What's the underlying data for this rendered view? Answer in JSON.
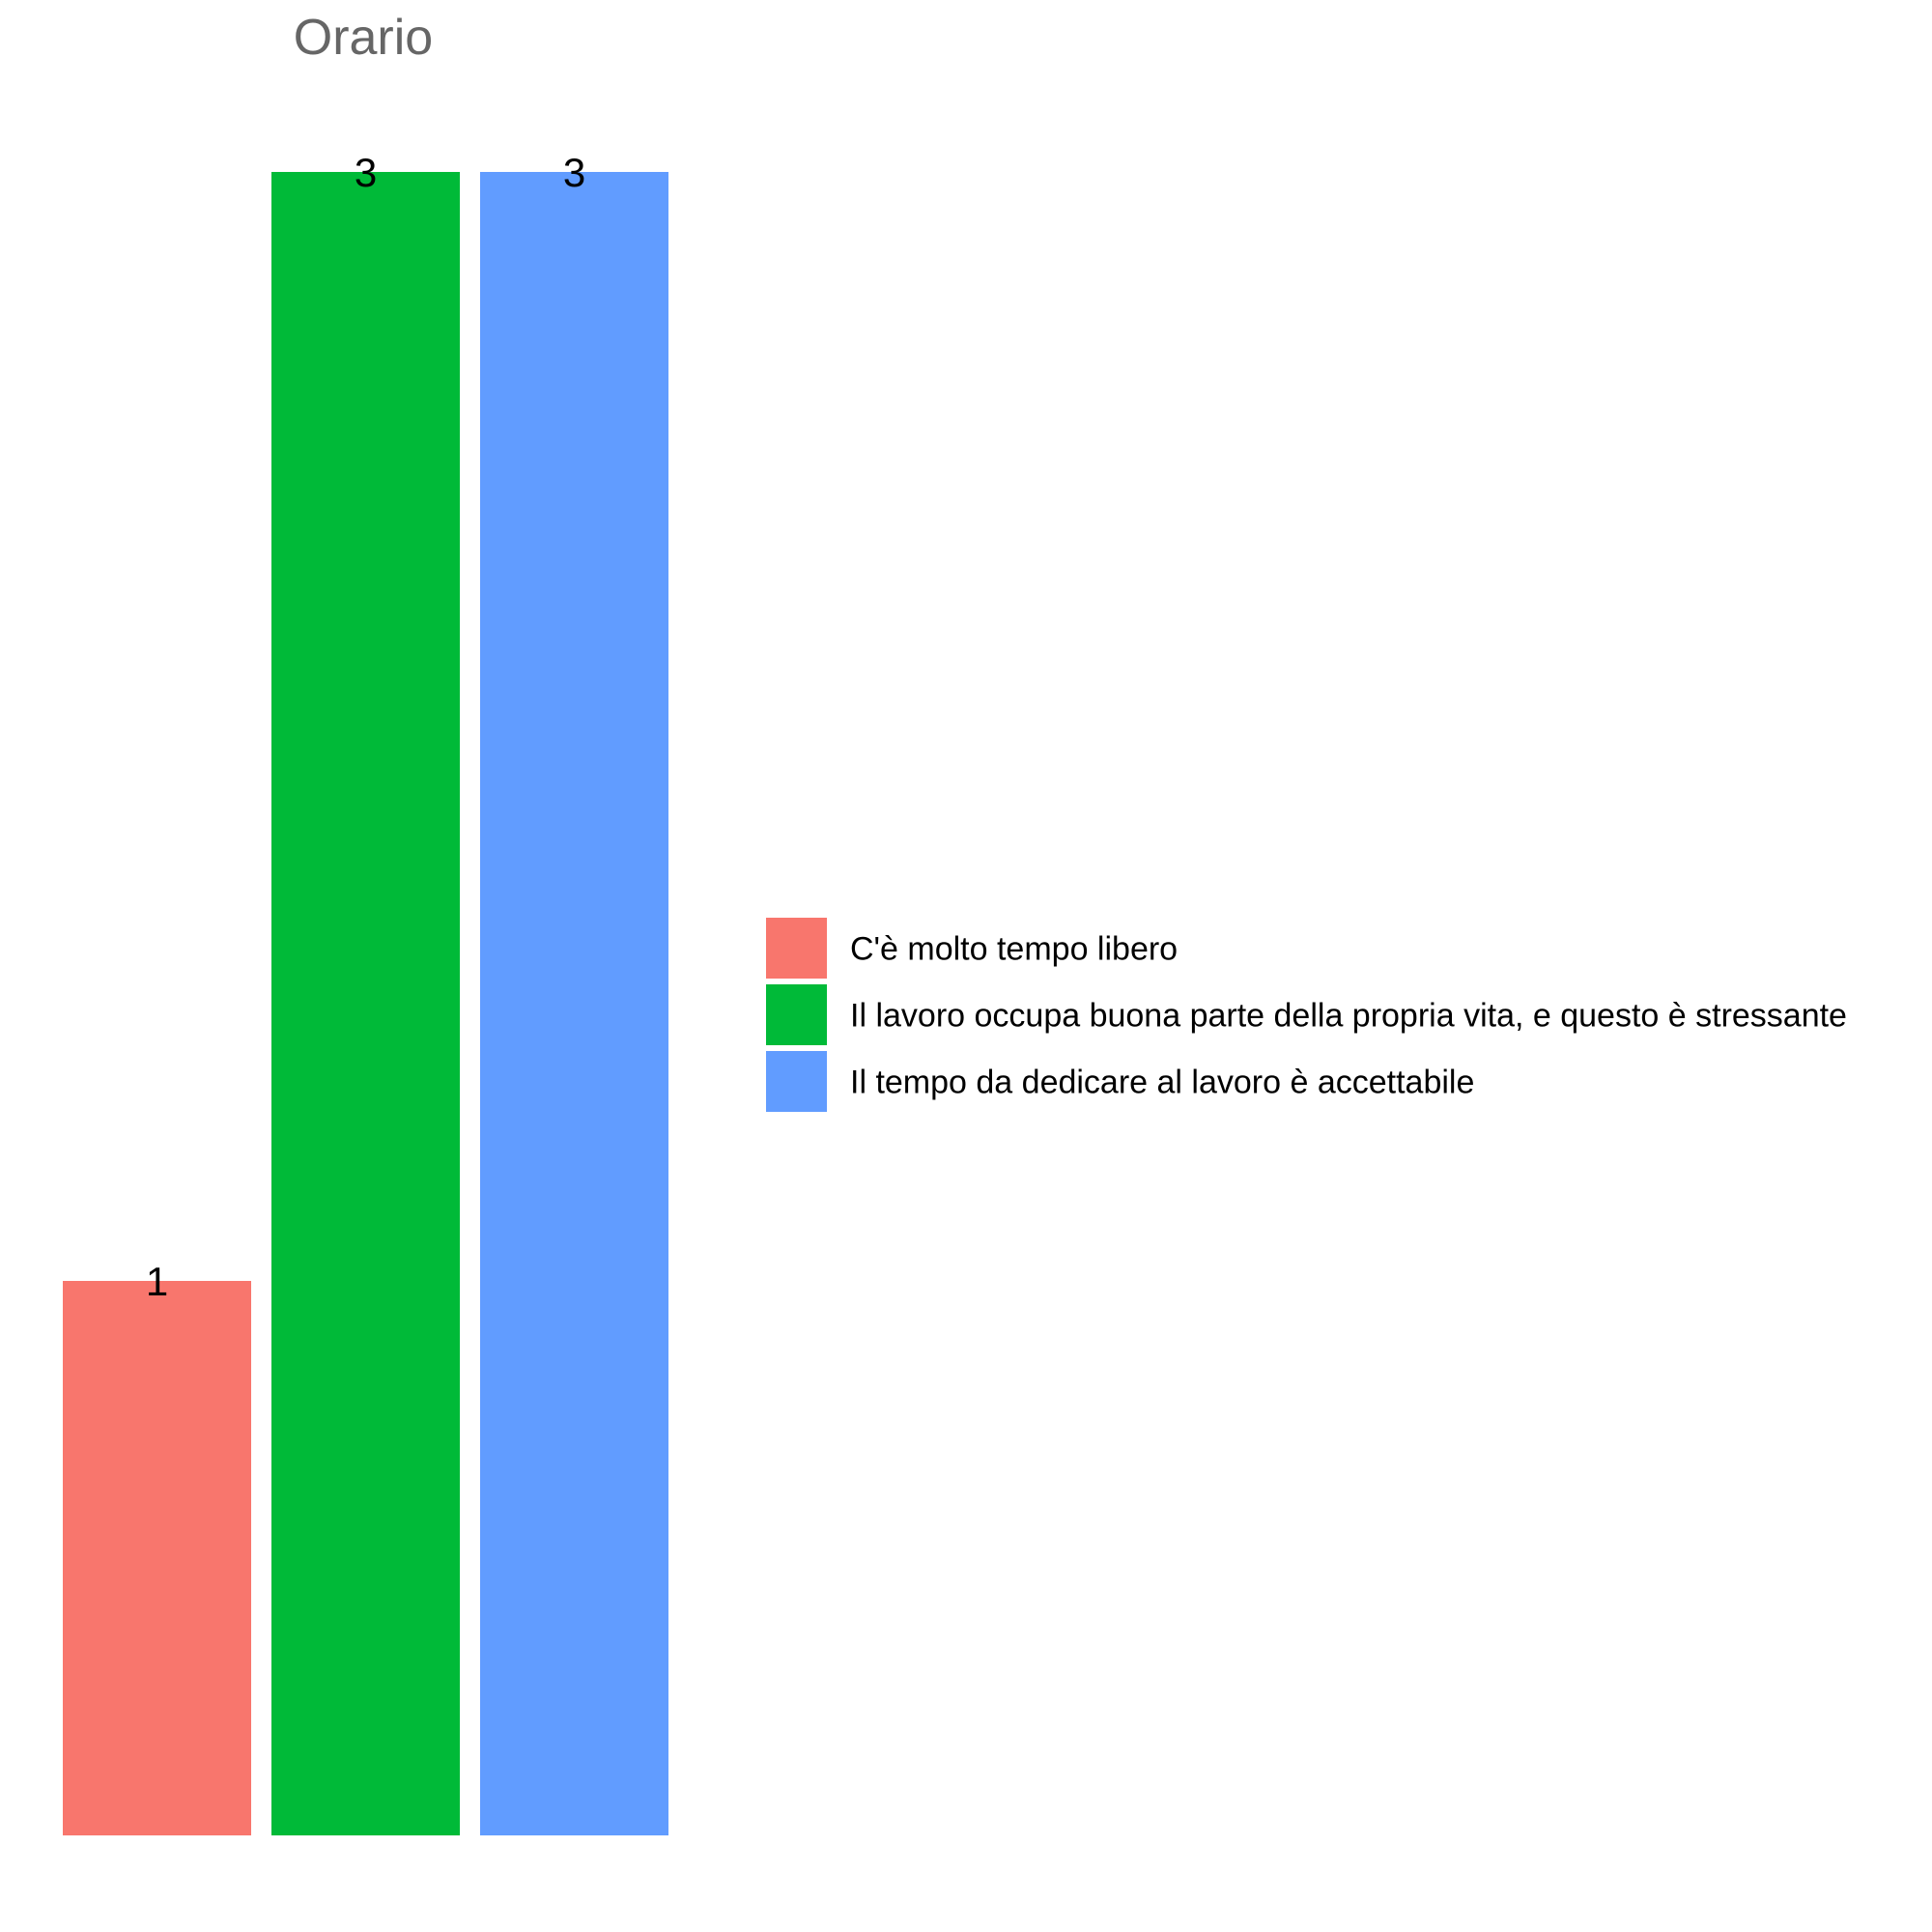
{
  "chart_data": {
    "type": "bar",
    "title": "Orario",
    "xlabel": "",
    "ylabel": "",
    "ylim": [
      0,
      3
    ],
    "grid": false,
    "legend_position": "right",
    "categories": [
      "C'è molto tempo libero",
      "Il lavoro occupa buona parte della propria vita, e questo è stressante",
      "Il tempo da dedicare al lavoro è accettabile"
    ],
    "values": [
      1,
      3,
      3
    ],
    "colors": [
      "#F8766D",
      "#00BA38",
      "#619CFF"
    ],
    "data_labels": [
      "1",
      "3",
      "3"
    ]
  }
}
